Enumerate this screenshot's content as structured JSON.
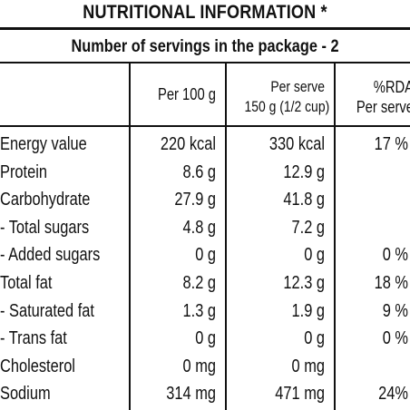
{
  "title": "NUTRITIONAL INFORMATION *",
  "servings_line": "Number of servings in the package - 2",
  "columns": {
    "per100": "Per 100 g",
    "per_serve_line1": "Per serve",
    "per_serve_line2": "150 g (1/2 cup)",
    "rda_line1": "%RDA",
    "rda_line2": "Per serve"
  },
  "rows": [
    {
      "name": "Energy value",
      "per100": "220 kcal",
      "serve": "330 kcal",
      "rda": "17 %"
    },
    {
      "name": "Protein",
      "per100": "8.6 g",
      "serve": "12.9 g",
      "rda": ""
    },
    {
      "name": "Carbohydrate",
      "per100": "27.9 g",
      "serve": "41.8 g",
      "rda": ""
    },
    {
      "name": " - Total sugars",
      "per100": "4.8 g",
      "serve": "7.2 g",
      "rda": ""
    },
    {
      "name": " - Added sugars",
      "per100": "0 g",
      "serve": "0 g",
      "rda": "0 %"
    },
    {
      "name": "Total fat",
      "per100": "8.2 g",
      "serve": "12.3 g",
      "rda": "18 %"
    },
    {
      "name": " - Saturated fat",
      "per100": "1.3 g",
      "serve": "1.9 g",
      "rda": "9 %"
    },
    {
      "name": " - Trans fat",
      "per100": "0 g",
      "serve": "0 g",
      "rda": "0 %"
    },
    {
      "name": "Cholesterol",
      "per100": "0 mg",
      "serve": "0 mg",
      "rda": ""
    },
    {
      "name": "Sodium",
      "per100": "314 mg",
      "serve": "471 mg",
      "rda": "24%"
    }
  ]
}
